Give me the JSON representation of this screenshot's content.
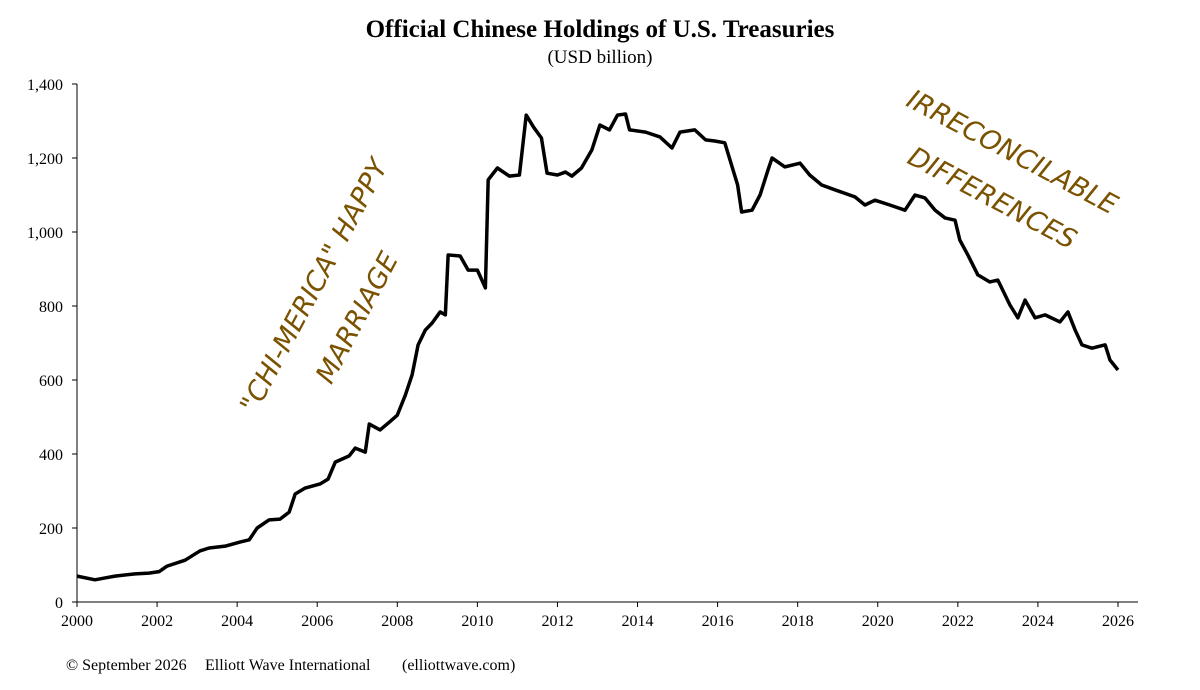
{
  "chart_data": {
    "type": "line",
    "title": "Official Chinese Holdings of U.S. Treasuries",
    "subtitle": "(USD billion)",
    "annotations": [
      "\"CHI-MERICA\" HAPPY",
      "MARRIAGE",
      "IRRECONCILABLE",
      "DIFFERENCES"
    ],
    "footer": [
      "© September 2026",
      "Elliott Wave International",
      "(elliottwave.com)"
    ],
    "xlim": [
      2000,
      2026.5
    ],
    "xticks": [
      2000,
      2002,
      2004,
      2006,
      2008,
      2010,
      2012,
      2014,
      2016,
      2018,
      2020,
      2022,
      2024,
      2026
    ],
    "ylim": [
      0,
      1400
    ],
    "yticks": [
      0,
      200,
      400,
      600,
      800,
      {
        "value": 1000,
        "label": "1,000"
      },
      {
        "value": 1200,
        "label": "1,200"
      },
      {
        "value": 1400,
        "label": "1,400"
      }
    ],
    "grid": false,
    "annotation_color": "#7a5200",
    "x": [
      2000.0,
      2000.45,
      2000.7,
      2000.95,
      2001.45,
      2001.8,
      2002.05,
      2002.25,
      2002.7,
      2003.07,
      2003.3,
      2003.7,
      2004.07,
      2004.3,
      2004.5,
      2004.8,
      2005.07,
      2005.3,
      2005.45,
      2005.7,
      2006.07,
      2006.27,
      2006.45,
      2006.8,
      2006.95,
      2007.2,
      2007.3,
      2007.57,
      2007.8,
      2008.0,
      2008.2,
      2008.37,
      2008.52,
      2008.7,
      2008.87,
      2009.07,
      2009.2,
      2009.27,
      2009.57,
      2009.77,
      2010.0,
      2010.2,
      2010.27,
      2010.5,
      2010.8,
      2011.05,
      2011.22,
      2011.4,
      2011.6,
      2011.74,
      2012.0,
      2012.2,
      2012.36,
      2012.6,
      2012.86,
      2013.06,
      2013.3,
      2013.5,
      2013.7,
      2013.8,
      2014.2,
      2014.56,
      2014.86,
      2015.06,
      2015.43,
      2015.7,
      2015.93,
      2016.18,
      2016.5,
      2016.6,
      2016.86,
      2017.06,
      2017.26,
      2017.36,
      2017.68,
      2018.06,
      2018.3,
      2018.6,
      2018.93,
      2019.43,
      2019.68,
      2019.93,
      2020.3,
      2020.68,
      2020.93,
      2021.18,
      2021.43,
      2021.68,
      2021.93,
      2022.05,
      2022.25,
      2022.5,
      2022.8,
      2023.0,
      2023.3,
      2023.5,
      2023.68,
      2023.93,
      2024.18,
      2024.55,
      2024.75,
      2024.93,
      2025.1,
      2025.35,
      2025.68,
      2025.8,
      2026.0
    ],
    "series": [
      {
        "name": "Holdings",
        "color": "#000000",
        "values": [
          70,
          60,
          65,
          70,
          76,
          78,
          82,
          97,
          113,
          138,
          146,
          151,
          162,
          168,
          200,
          222,
          224,
          243,
          292,
          308,
          319,
          332,
          378,
          395,
          416,
          405,
          481,
          465,
          486,
          505,
          559,
          614,
          695,
          735,
          754,
          784,
          776,
          938,
          935,
          897,
          897,
          849,
          1141,
          1173,
          1151,
          1154,
          1316,
          1284,
          1254,
          1159,
          1154,
          1162,
          1151,
          1173,
          1222,
          1289,
          1276,
          1316,
          1319,
          1276,
          1270,
          1257,
          1227,
          1270,
          1276,
          1249,
          1246,
          1241,
          1127,
          1054,
          1059,
          1100,
          1168,
          1200,
          1176,
          1186,
          1154,
          1127,
          1114,
          1095,
          1073,
          1086,
          1073,
          1059,
          1100,
          1092,
          1059,
          1038,
          1032,
          978,
          938,
          884,
          865,
          870,
          803,
          768,
          816,
          768,
          776,
          757,
          784,
          735,
          695,
          686,
          695,
          654,
          627
        ]
      }
    ]
  }
}
